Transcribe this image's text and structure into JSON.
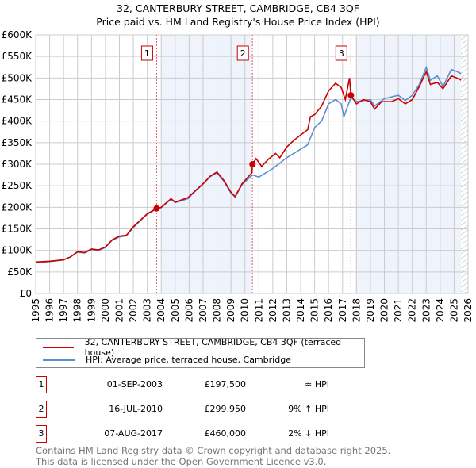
{
  "chart_data": {
    "type": "line",
    "title": "32, CANTERBURY STREET, CAMBRIDGE, CB4 3QF",
    "subtitle": "Price paid vs. HM Land Registry's House Price Index (HPI)",
    "xlim": [
      1995,
      2026
    ],
    "ylim": [
      0,
      600000
    ],
    "x_ticks": [
      "1995",
      "1996",
      "1997",
      "1998",
      "1999",
      "2000",
      "2001",
      "2002",
      "2003",
      "2004",
      "2005",
      "2006",
      "2007",
      "2008",
      "2009",
      "2010",
      "2011",
      "2012",
      "2013",
      "2014",
      "2015",
      "2016",
      "2017",
      "2018",
      "2019",
      "2020",
      "2021",
      "2022",
      "2023",
      "2024",
      "2025",
      "2026"
    ],
    "y_ticks": [
      "£0",
      "£50K",
      "£100K",
      "£150K",
      "£200K",
      "£250K",
      "£300K",
      "£350K",
      "£400K",
      "£450K",
      "£500K",
      "£550K",
      "£600K"
    ],
    "series": [
      {
        "name": "32, CANTERBURY STREET, CAMBRIDGE, CB4 3QF (terraced house)",
        "color": "#cc0000",
        "x": [
          1995,
          1996,
          1997,
          1997.5,
          1998,
          1998.5,
          1999,
          1999.5,
          2000,
          2000.5,
          2001,
          2001.5,
          2002,
          2002.5,
          2003,
          2003.67,
          2004,
          2004.7,
          2005,
          2005.9,
          2006.5,
          2007,
          2007.5,
          2008,
          2008.5,
          2009,
          2009.3,
          2009.8,
          2010.5,
          2010.54,
          2010.8,
          2011.2,
          2011.7,
          2012.2,
          2012.5,
          2013,
          2013.5,
          2014,
          2014.5,
          2014.7,
          2015,
          2015.5,
          2016,
          2016.5,
          2016.9,
          2017.2,
          2017.5,
          2017.6,
          2018,
          2018.5,
          2019,
          2019.3,
          2019.8,
          2020.5,
          2021,
          2021.5,
          2022,
          2022.5,
          2023,
          2023.3,
          2023.8,
          2024.2,
          2024.8,
          2025.2,
          2025.5
        ],
        "y": [
          73,
          75,
          78,
          85,
          97,
          95,
          103,
          101,
          108,
          125,
          133,
          135,
          155,
          170,
          185,
          197.5,
          200,
          220,
          212,
          222,
          240,
          255,
          272,
          282,
          262,
          235,
          225,
          255,
          280,
          300,
          313,
          295,
          312,
          325,
          315,
          340,
          355,
          368,
          380,
          410,
          415,
          435,
          470,
          488,
          478,
          450,
          500,
          460,
          440,
          450,
          445,
          428,
          445,
          445,
          452,
          440,
          450,
          480,
          515,
          485,
          490,
          475,
          505,
          500,
          495
        ]
      },
      {
        "name": "HPI: Average price, terraced house, Cambridge",
        "color": "#5b8fd0",
        "x": [
          1995,
          1996,
          1997,
          1997.5,
          1998,
          1998.5,
          1999,
          1999.5,
          2000,
          2000.5,
          2001,
          2001.5,
          2002,
          2002.5,
          2003,
          2003.67,
          2004,
          2004.7,
          2005,
          2005.9,
          2006.5,
          2007,
          2007.5,
          2008,
          2008.5,
          2009,
          2009.3,
          2009.8,
          2010.54,
          2011,
          2012,
          2013,
          2014,
          2014.5,
          2015,
          2015.5,
          2016,
          2016.5,
          2016.9,
          2017.1,
          2017.6,
          2018,
          2019,
          2019.3,
          2020,
          2021,
          2021.5,
          2022,
          2022.5,
          2023,
          2023.3,
          2023.8,
          2024.2,
          2024.8,
          2025.2,
          2025.5
        ],
        "y": [
          72,
          74,
          78,
          85,
          96,
          94,
          102,
          100,
          107,
          124,
          131,
          134,
          153,
          169,
          184,
          196,
          199,
          219,
          211,
          220,
          239,
          254,
          271,
          280,
          260,
          233,
          224,
          253,
          275,
          270,
          290,
          315,
          335,
          345,
          385,
          400,
          440,
          450,
          440,
          410,
          455,
          445,
          450,
          435,
          452,
          460,
          448,
          460,
          485,
          525,
          495,
          505,
          480,
          520,
          515,
          510
        ]
      }
    ],
    "sales": [
      {
        "label": "1",
        "x": 2003.67,
        "y": 197.5
      },
      {
        "label": "2",
        "x": 2010.54,
        "y": 299.95
      },
      {
        "label": "3",
        "x": 2017.6,
        "y": 460
      }
    ]
  },
  "legend": {
    "item1": "32, CANTERBURY STREET, CAMBRIDGE, CB4 3QF (terraced house)",
    "item2": "HPI: Average price, terraced house, Cambridge"
  },
  "table": [
    {
      "n": "1",
      "date": "01-SEP-2003",
      "price": "£197,500",
      "hpi": "≈ HPI"
    },
    {
      "n": "2",
      "date": "16-JUL-2010",
      "price": "£299,950",
      "hpi": "9% ↑ HPI"
    },
    {
      "n": "3",
      "date": "07-AUG-2017",
      "price": "£460,000",
      "hpi": "2% ↓ HPI"
    }
  ],
  "footer": {
    "line1": "Contains HM Land Registry data © Crown copyright and database right 2025.",
    "line2": "This data is licensed under the Open Government Licence v3.0."
  }
}
